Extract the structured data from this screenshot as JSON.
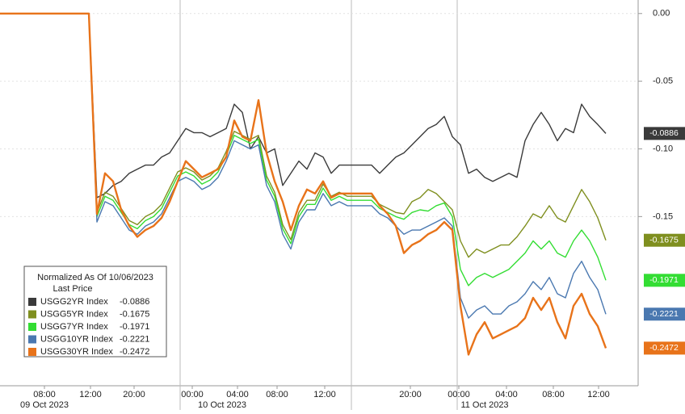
{
  "chart_data": {
    "type": "line",
    "legend_title": "Normalized As Of 10/06/2023",
    "legend_subtitle": "Last Price",
    "xlim": [
      0,
      79
    ],
    "xticks": [
      {
        "value": 5.5,
        "label": "08:00"
      },
      {
        "value": 11.2,
        "label": "12:00"
      },
      {
        "value": 16.6,
        "label": "20:00"
      },
      {
        "value": 23.8,
        "label": "00:00"
      },
      {
        "value": 29.4,
        "label": "04:00"
      },
      {
        "value": 34.3,
        "label": "08:00"
      },
      {
        "value": 40.2,
        "label": "12:00"
      },
      {
        "value": 50.8,
        "label": "20:00"
      },
      {
        "value": 56.8,
        "label": "00:00"
      },
      {
        "value": 62.7,
        "label": "04:00"
      },
      {
        "value": 68.5,
        "label": "08:00"
      },
      {
        "value": 74.1,
        "label": "12:00"
      }
    ],
    "x_date_labels": [
      {
        "value": 5.5,
        "label": "09 Oct 2023"
      },
      {
        "value": 27.5,
        "label": "10 Oct 2023"
      },
      {
        "value": 60.0,
        "label": "11 Oct 2023"
      }
    ],
    "session_breaks": [
      22.3,
      43.5,
      56.6
    ],
    "ylim": [
      -0.275,
      0.01
    ],
    "yticks": [
      {
        "value": 0,
        "label": "0.00"
      },
      {
        "value": -0.05,
        "label": "-0.05"
      },
      {
        "value": -0.1,
        "label": "-0.10"
      },
      {
        "value": -0.15,
        "label": "-0.15"
      }
    ],
    "series": [
      {
        "name": "USGG2YR Index",
        "color": "#3a3a3a",
        "values": [
          0,
          0,
          0,
          0,
          0,
          0,
          0,
          0,
          0,
          0,
          0,
          0,
          -0.136,
          -0.133,
          -0.127,
          -0.124,
          -0.118,
          -0.115,
          -0.112,
          -0.112,
          -0.106,
          -0.103,
          -0.094,
          -0.085,
          -0.088,
          -0.088,
          -0.091,
          -0.088,
          -0.085,
          -0.067,
          -0.073,
          -0.1,
          -0.091,
          -0.103,
          -0.1,
          -0.127,
          -0.118,
          -0.109,
          -0.115,
          -0.103,
          -0.106,
          -0.118,
          -0.112,
          -0.112,
          -0.112,
          -0.112,
          -0.112,
          -0.118,
          -0.112,
          -0.106,
          -0.103,
          -0.097,
          -0.091,
          -0.085,
          -0.082,
          -0.076,
          -0.091,
          -0.097,
          -0.118,
          -0.115,
          -0.121,
          -0.124,
          -0.121,
          -0.118,
          -0.121,
          -0.094,
          -0.082,
          -0.073,
          -0.082,
          -0.094,
          -0.085,
          -0.088,
          -0.067,
          -0.076,
          -0.082,
          -0.0886
        ]
      },
      {
        "name": "USGG5YR Index",
        "color": "#7f8f1f",
        "values": [
          0,
          0,
          0,
          0,
          0,
          0,
          0,
          0,
          0,
          0,
          0,
          0,
          -0.147,
          -0.132,
          -0.135,
          -0.144,
          -0.153,
          -0.156,
          -0.15,
          -0.147,
          -0.141,
          -0.129,
          -0.117,
          -0.114,
          -0.117,
          -0.123,
          -0.12,
          -0.114,
          -0.102,
          -0.087,
          -0.09,
          -0.093,
          -0.09,
          -0.12,
          -0.132,
          -0.156,
          -0.167,
          -0.147,
          -0.138,
          -0.138,
          -0.126,
          -0.135,
          -0.132,
          -0.135,
          -0.135,
          -0.135,
          -0.135,
          -0.141,
          -0.144,
          -0.147,
          -0.148,
          -0.139,
          -0.136,
          -0.13,
          -0.133,
          -0.139,
          -0.145,
          -0.168,
          -0.18,
          -0.174,
          -0.177,
          -0.174,
          -0.171,
          -0.171,
          -0.165,
          -0.157,
          -0.148,
          -0.151,
          -0.142,
          -0.151,
          -0.154,
          -0.142,
          -0.13,
          -0.139,
          -0.151,
          -0.1675
        ]
      },
      {
        "name": "USGG7YR Index",
        "color": "#33dd33",
        "values": [
          0,
          0,
          0,
          0,
          0,
          0,
          0,
          0,
          0,
          0,
          0,
          0,
          -0.15,
          -0.135,
          -0.138,
          -0.147,
          -0.156,
          -0.159,
          -0.153,
          -0.15,
          -0.144,
          -0.132,
          -0.12,
          -0.117,
          -0.12,
          -0.126,
          -0.123,
          -0.117,
          -0.105,
          -0.09,
          -0.093,
          -0.096,
          -0.093,
          -0.123,
          -0.135,
          -0.159,
          -0.17,
          -0.15,
          -0.141,
          -0.141,
          -0.129,
          -0.138,
          -0.135,
          -0.138,
          -0.138,
          -0.138,
          -0.138,
          -0.144,
          -0.147,
          -0.15,
          -0.152,
          -0.147,
          -0.145,
          -0.146,
          -0.142,
          -0.14,
          -0.15,
          -0.189,
          -0.201,
          -0.195,
          -0.192,
          -0.195,
          -0.192,
          -0.189,
          -0.183,
          -0.177,
          -0.168,
          -0.174,
          -0.168,
          -0.177,
          -0.18,
          -0.168,
          -0.16,
          -0.168,
          -0.18,
          -0.1971
        ]
      },
      {
        "name": "USGG10YR Index",
        "color": "#4a78b0",
        "values": [
          0,
          0,
          0,
          0,
          0,
          0,
          0,
          0,
          0,
          0,
          0,
          0,
          -0.154,
          -0.139,
          -0.142,
          -0.151,
          -0.16,
          -0.163,
          -0.157,
          -0.154,
          -0.148,
          -0.136,
          -0.124,
          -0.121,
          -0.124,
          -0.13,
          -0.127,
          -0.121,
          -0.109,
          -0.094,
          -0.097,
          -0.1,
          -0.097,
          -0.127,
          -0.139,
          -0.163,
          -0.174,
          -0.154,
          -0.145,
          -0.145,
          -0.133,
          -0.142,
          -0.139,
          -0.142,
          -0.142,
          -0.142,
          -0.142,
          -0.148,
          -0.151,
          -0.157,
          -0.163,
          -0.16,
          -0.16,
          -0.157,
          -0.154,
          -0.151,
          -0.157,
          -0.21,
          -0.225,
          -0.219,
          -0.216,
          -0.222,
          -0.222,
          -0.216,
          -0.213,
          -0.207,
          -0.198,
          -0.204,
          -0.195,
          -0.207,
          -0.21,
          -0.192,
          -0.183,
          -0.195,
          -0.204,
          -0.2221
        ]
      },
      {
        "name": "USGG30YR Index",
        "color": "#e8731a",
        "values": [
          0,
          0,
          0,
          0,
          0,
          0,
          0,
          0,
          0,
          0,
          0,
          0,
          -0.148,
          -0.118,
          -0.124,
          -0.145,
          -0.157,
          -0.165,
          -0.16,
          -0.157,
          -0.151,
          -0.139,
          -0.124,
          -0.109,
          -0.115,
          -0.121,
          -0.118,
          -0.115,
          -0.106,
          -0.079,
          -0.091,
          -0.094,
          -0.064,
          -0.103,
          -0.124,
          -0.139,
          -0.16,
          -0.142,
          -0.13,
          -0.133,
          -0.124,
          -0.136,
          -0.133,
          -0.133,
          -0.133,
          -0.133,
          -0.133,
          -0.142,
          -0.148,
          -0.157,
          -0.177,
          -0.171,
          -0.168,
          -0.163,
          -0.16,
          -0.154,
          -0.16,
          -0.216,
          -0.252,
          -0.237,
          -0.228,
          -0.24,
          -0.237,
          -0.234,
          -0.231,
          -0.225,
          -0.21,
          -0.219,
          -0.21,
          -0.228,
          -0.24,
          -0.216,
          -0.207,
          -0.222,
          -0.231,
          -0.2472
        ]
      }
    ]
  }
}
